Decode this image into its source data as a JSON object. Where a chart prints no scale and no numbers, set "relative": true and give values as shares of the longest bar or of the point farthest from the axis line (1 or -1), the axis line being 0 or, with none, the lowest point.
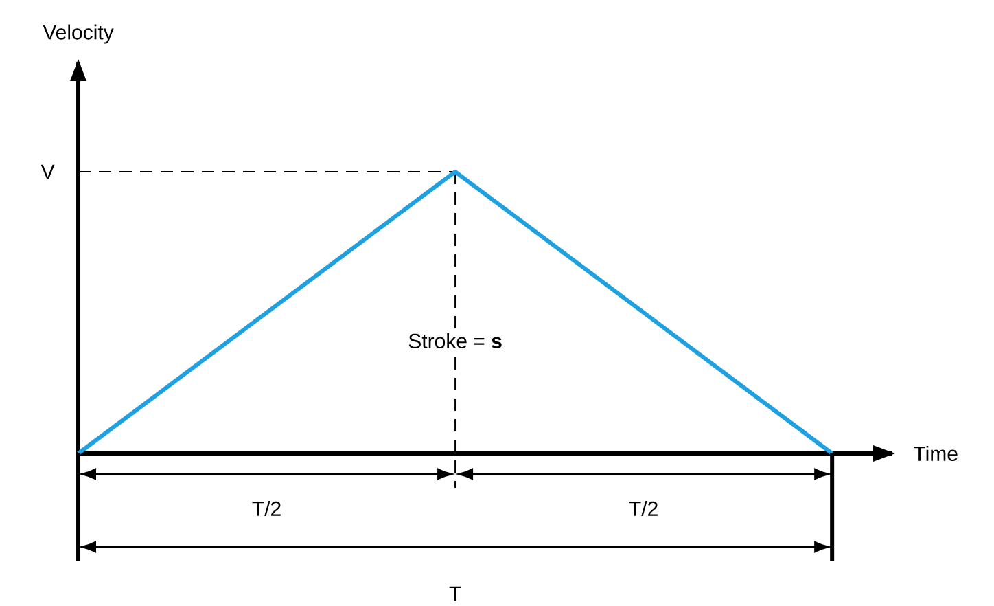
{
  "chart_data": {
    "type": "line",
    "xlabel": "Time",
    "categories": [
      null,
      null,
      null
    ],
    "series": [
      {
        "color": "#1fa0e0",
        "values": [
          0,
          1,
          0
        ]
      }
    ],
    "relative": true,
    "ref_lines": [
      {
        "axis": "y",
        "value": 1,
        "label": "V",
        "line_style": "dashed",
        "color": "#000000"
      }
    ],
    "annotations": [
      "Stroke = **s**",
      "T/2",
      "T/2",
      "T",
      "Velocity"
    ]
  }
}
